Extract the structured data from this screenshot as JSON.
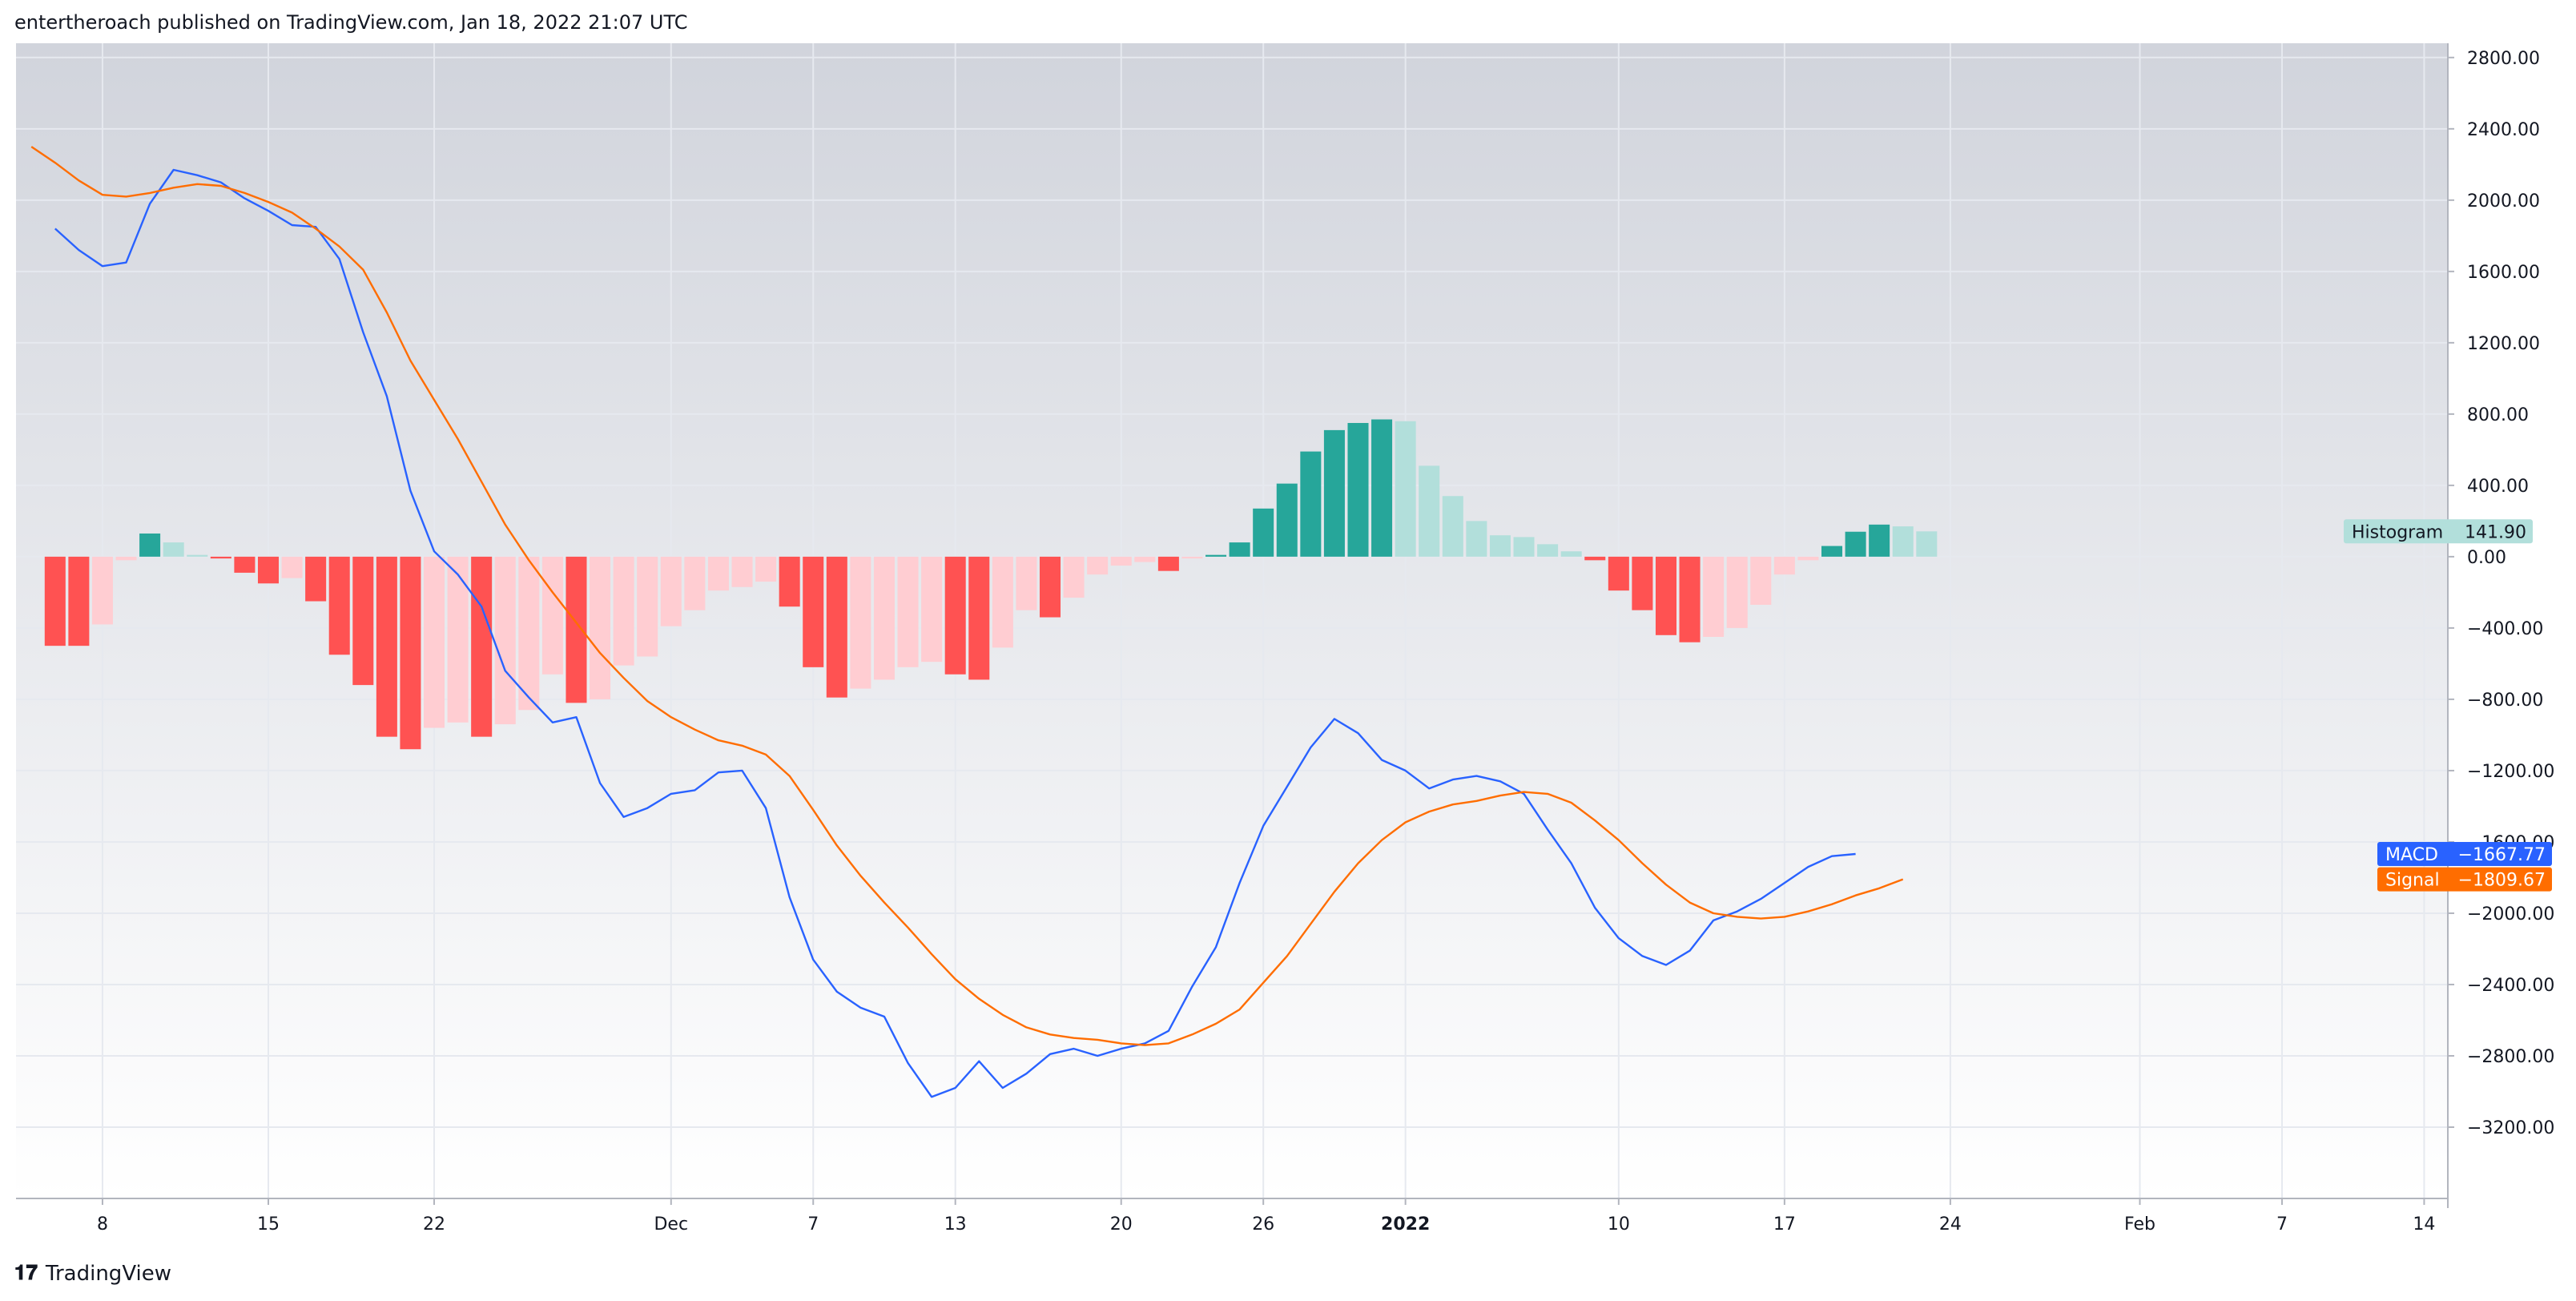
{
  "header": {
    "text": "entertheroach published on TradingView.com, Jan 18, 2022 21:07 UTC"
  },
  "footer": {
    "logo_glyph": "𝟏𝟕",
    "brand": "TradingView"
  },
  "colors": {
    "macd": "#2962ff",
    "signal": "#ff6d00",
    "hist_up_strong": "#26a69a",
    "hist_up_weak": "#b2dfdb",
    "hist_down_strong": "#ff5252",
    "hist_down_weak": "#ffcdd2",
    "grid": "#e6e9ef",
    "bg_top": "#d1d4dc",
    "bg_bottom": "#ffffff"
  },
  "chart_data": {
    "type": "bar",
    "title": "",
    "ylim": [
      -3600,
      2880
    ],
    "y_ticks": [
      2800,
      2400,
      2000,
      1600,
      1200,
      800,
      400,
      0,
      -400,
      -800,
      -1200,
      -1600,
      -2000,
      -2400,
      -2800,
      -3200
    ],
    "y_tick_labels": [
      "2800.00",
      "2400.00",
      "2000.00",
      "1600.00",
      "1200.00",
      "800.00",
      "400.00",
      "0.00",
      "−400.00",
      "−800.00",
      "−1200.00",
      "−1600.00",
      "−2000.00",
      "−2400.00",
      "−2800.00",
      "−3200.00"
    ],
    "x_index_range": [
      -1.65,
      101
    ],
    "x_ticks": [
      {
        "index": 2,
        "label": "8",
        "bold": false
      },
      {
        "index": 9,
        "label": "15",
        "bold": false
      },
      {
        "index": 16,
        "label": "22",
        "bold": false
      },
      {
        "index": 26,
        "label": "Dec",
        "bold": false
      },
      {
        "index": 32,
        "label": "7",
        "bold": false
      },
      {
        "index": 38,
        "label": "13",
        "bold": false
      },
      {
        "index": 45,
        "label": "20",
        "bold": false
      },
      {
        "index": 51,
        "label": "26",
        "bold": false
      },
      {
        "index": 57,
        "label": "2022",
        "bold": true
      },
      {
        "index": 66,
        "label": "10",
        "bold": false
      },
      {
        "index": 73,
        "label": "17",
        "bold": false
      },
      {
        "index": 80,
        "label": "24",
        "bold": false
      },
      {
        "index": 88,
        "label": "Feb",
        "bold": false
      },
      {
        "index": 94,
        "label": "7",
        "bold": false
      },
      {
        "index": 100,
        "label": "14",
        "bold": false
      }
    ],
    "histogram": [
      -500,
      -500,
      -380,
      -20,
      130,
      80,
      10,
      -10,
      -90,
      -150,
      -120,
      -250,
      -550,
      -720,
      -1010,
      -1080,
      -960,
      -930,
      -1010,
      -940,
      -860,
      -660,
      -820,
      -800,
      -610,
      -560,
      -390,
      -300,
      -190,
      -170,
      -140,
      -280,
      -620,
      -790,
      -740,
      -690,
      -620,
      -590,
      -660,
      -690,
      -510,
      -300,
      -340,
      -230,
      -100,
      -50,
      -30,
      -80,
      -10,
      10,
      80,
      270,
      410,
      590,
      710,
      750,
      770,
      760,
      510,
      340,
      200,
      120,
      110,
      70,
      30,
      -20,
      -190,
      -300,
      -440,
      -480,
      -450,
      -400,
      -270,
      -100,
      -20,
      60,
      140,
      180,
      170,
      142
    ],
    "hist_x_start": 0,
    "series": [
      {
        "name": "MACD",
        "x_start": 0,
        "values": [
          1840,
          1720,
          1630,
          1650,
          1980,
          2170,
          2140,
          2100,
          2010,
          1940,
          1860,
          1850,
          1670,
          1260,
          900,
          370,
          30,
          -100,
          -280,
          -640,
          -790,
          -930,
          -900,
          -1270,
          -1460,
          -1410,
          -1330,
          -1310,
          -1210,
          -1200,
          -1410,
          -1910,
          -2260,
          -2440,
          -2530,
          -2580,
          -2840,
          -3030,
          -2980,
          -2830,
          -2980,
          -2900,
          -2790,
          -2760,
          -2800,
          -2760,
          -2730,
          -2660,
          -2410,
          -2190,
          -1830,
          -1510,
          -1290,
          -1070,
          -910,
          -990,
          -1140,
          -1200,
          -1300,
          -1250,
          -1230,
          -1260,
          -1330,
          -1530,
          -1720,
          -1970,
          -2140,
          -2240,
          -2290,
          -2210,
          -2040,
          -1990,
          -1920,
          -1830,
          -1740,
          -1680,
          -1667.77
        ]
      },
      {
        "name": "Signal",
        "x_start": -1,
        "values": [
          2300,
          2210,
          2110,
          2030,
          2020,
          2040,
          2070,
          2090,
          2080,
          2040,
          1990,
          1930,
          1840,
          1740,
          1610,
          1370,
          1100,
          880,
          660,
          420,
          180,
          -20,
          -200,
          -370,
          -540,
          -680,
          -810,
          -900,
          -970,
          -1030,
          -1060,
          -1110,
          -1230,
          -1420,
          -1620,
          -1790,
          -1940,
          -2080,
          -2230,
          -2370,
          -2480,
          -2570,
          -2640,
          -2680,
          -2700,
          -2710,
          -2730,
          -2740,
          -2730,
          -2680,
          -2620,
          -2540,
          -2390,
          -2240,
          -2060,
          -1880,
          -1720,
          -1590,
          -1490,
          -1430,
          -1390,
          -1370,
          -1340,
          -1320,
          -1330,
          -1380,
          -1480,
          -1590,
          -1720,
          -1840,
          -1940,
          -2000,
          -2020,
          -2030,
          -2020,
          -1990,
          -1950,
          -1900,
          -1860,
          -1809.67
        ]
      }
    ],
    "value_tags": [
      {
        "name": "Histogram",
        "value_label": "141.90",
        "value": 141.9
      },
      {
        "name": "MACD",
        "value_label": "−1667.77",
        "value": -1667.77
      },
      {
        "name": "Signal",
        "value_label": "−1809.67",
        "value": -1809.67
      }
    ]
  }
}
